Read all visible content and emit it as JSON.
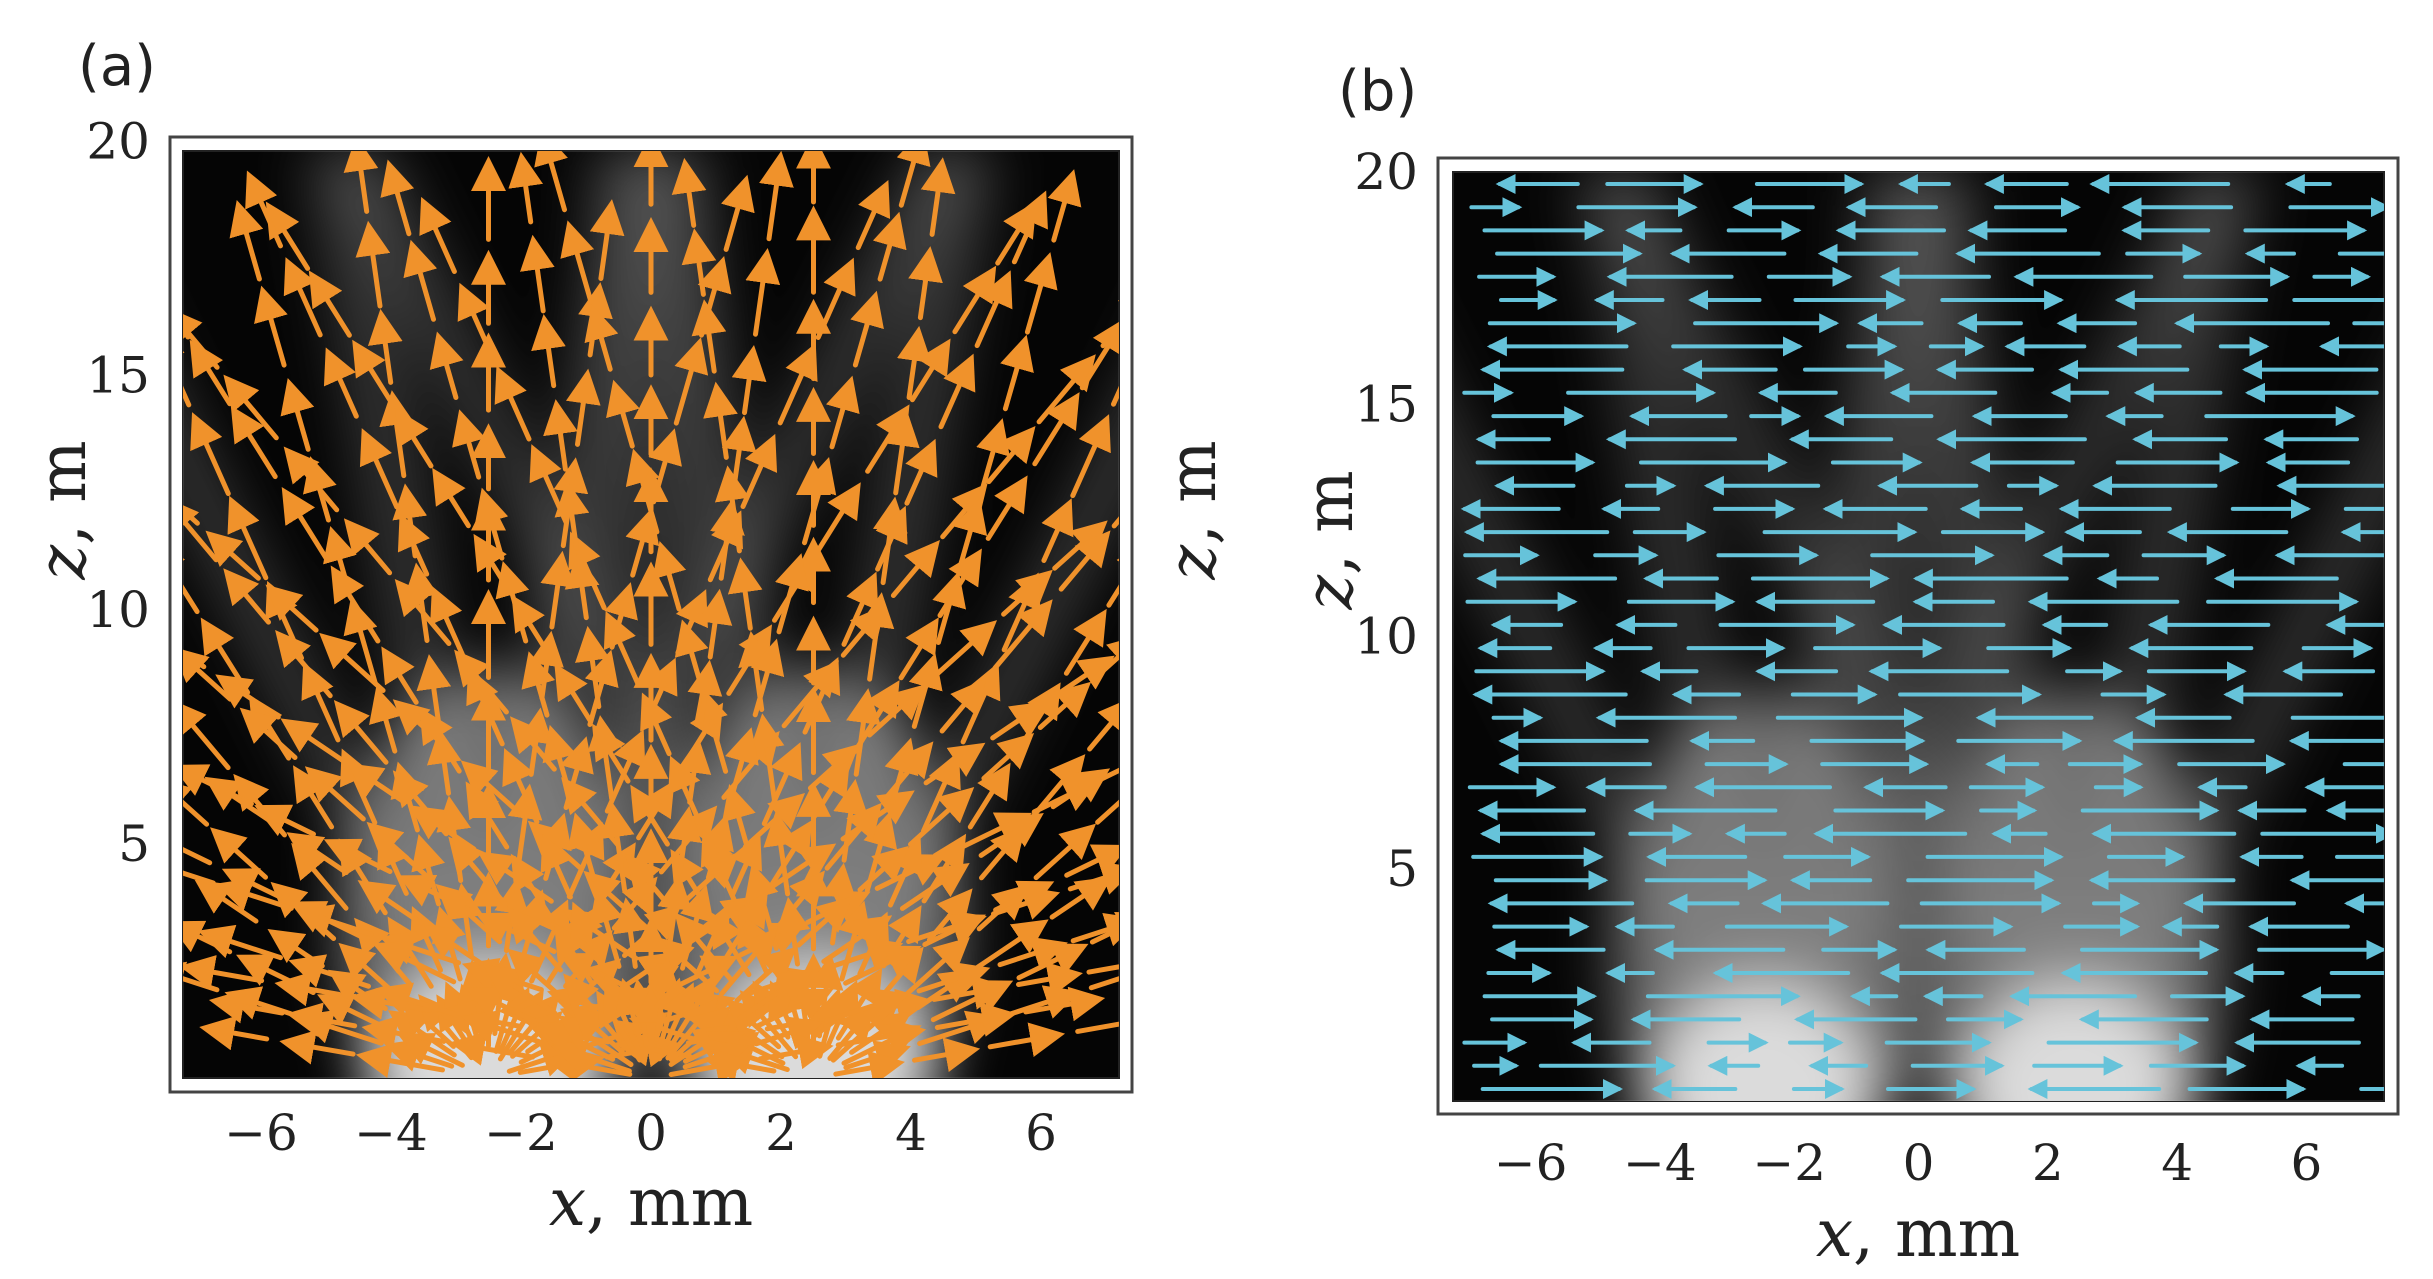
{
  "chart_data": [
    {
      "type": "heatmap",
      "panel_label": "(a)",
      "x_ticks": [
        "−6",
        "−4",
        "−2",
        "0",
        "2",
        "4",
        "6"
      ],
      "x_tick_values": [
        -6,
        -4,
        -2,
        0,
        2,
        4,
        6
      ],
      "z_ticks": [
        "5",
        "10",
        "15",
        "20"
      ],
      "z_tick_values": [
        5,
        10,
        15,
        20
      ],
      "xlabel_var": "x",
      "xlabel_unit": ", mm",
      "zlabel_var": "z",
      "zlabel_unit": ", m",
      "xlim": [
        -7.2,
        7.2
      ],
      "zlim": [
        0,
        19.8
      ],
      "intensity_peaks_x_mm": [
        -2.5,
        2.5
      ],
      "intensity_peak_z_m": 0,
      "arrow_field": "radial streamlines diverging from the two intensity peaks",
      "arrow_color": "#f0922b",
      "background": "grayscale intensity map"
    },
    {
      "type": "heatmap",
      "panel_label": "(b)",
      "x_ticks": [
        "−6",
        "−4",
        "−2",
        "0",
        "2",
        "4",
        "6"
      ],
      "x_tick_values": [
        -6,
        -4,
        -2,
        0,
        2,
        4,
        6
      ],
      "z_ticks": [
        "5",
        "10",
        "15",
        "20"
      ],
      "z_tick_values": [
        5,
        10,
        15,
        20
      ],
      "xlabel_var": "x",
      "xlabel_unit": ", mm",
      "zlabel_var": "z",
      "zlabel_unit": ", m",
      "xlim": [
        -7.2,
        7.2
      ],
      "zlim": [
        0,
        20
      ],
      "intensity_peaks_x_mm": [
        -2.4,
        2.4
      ],
      "intensity_peak_z_m": 0,
      "arrow_field": "horizontal arrows (transverse direction) on a regular grid",
      "arrow_color": "#66c3da",
      "background": "grayscale intensity map"
    }
  ]
}
